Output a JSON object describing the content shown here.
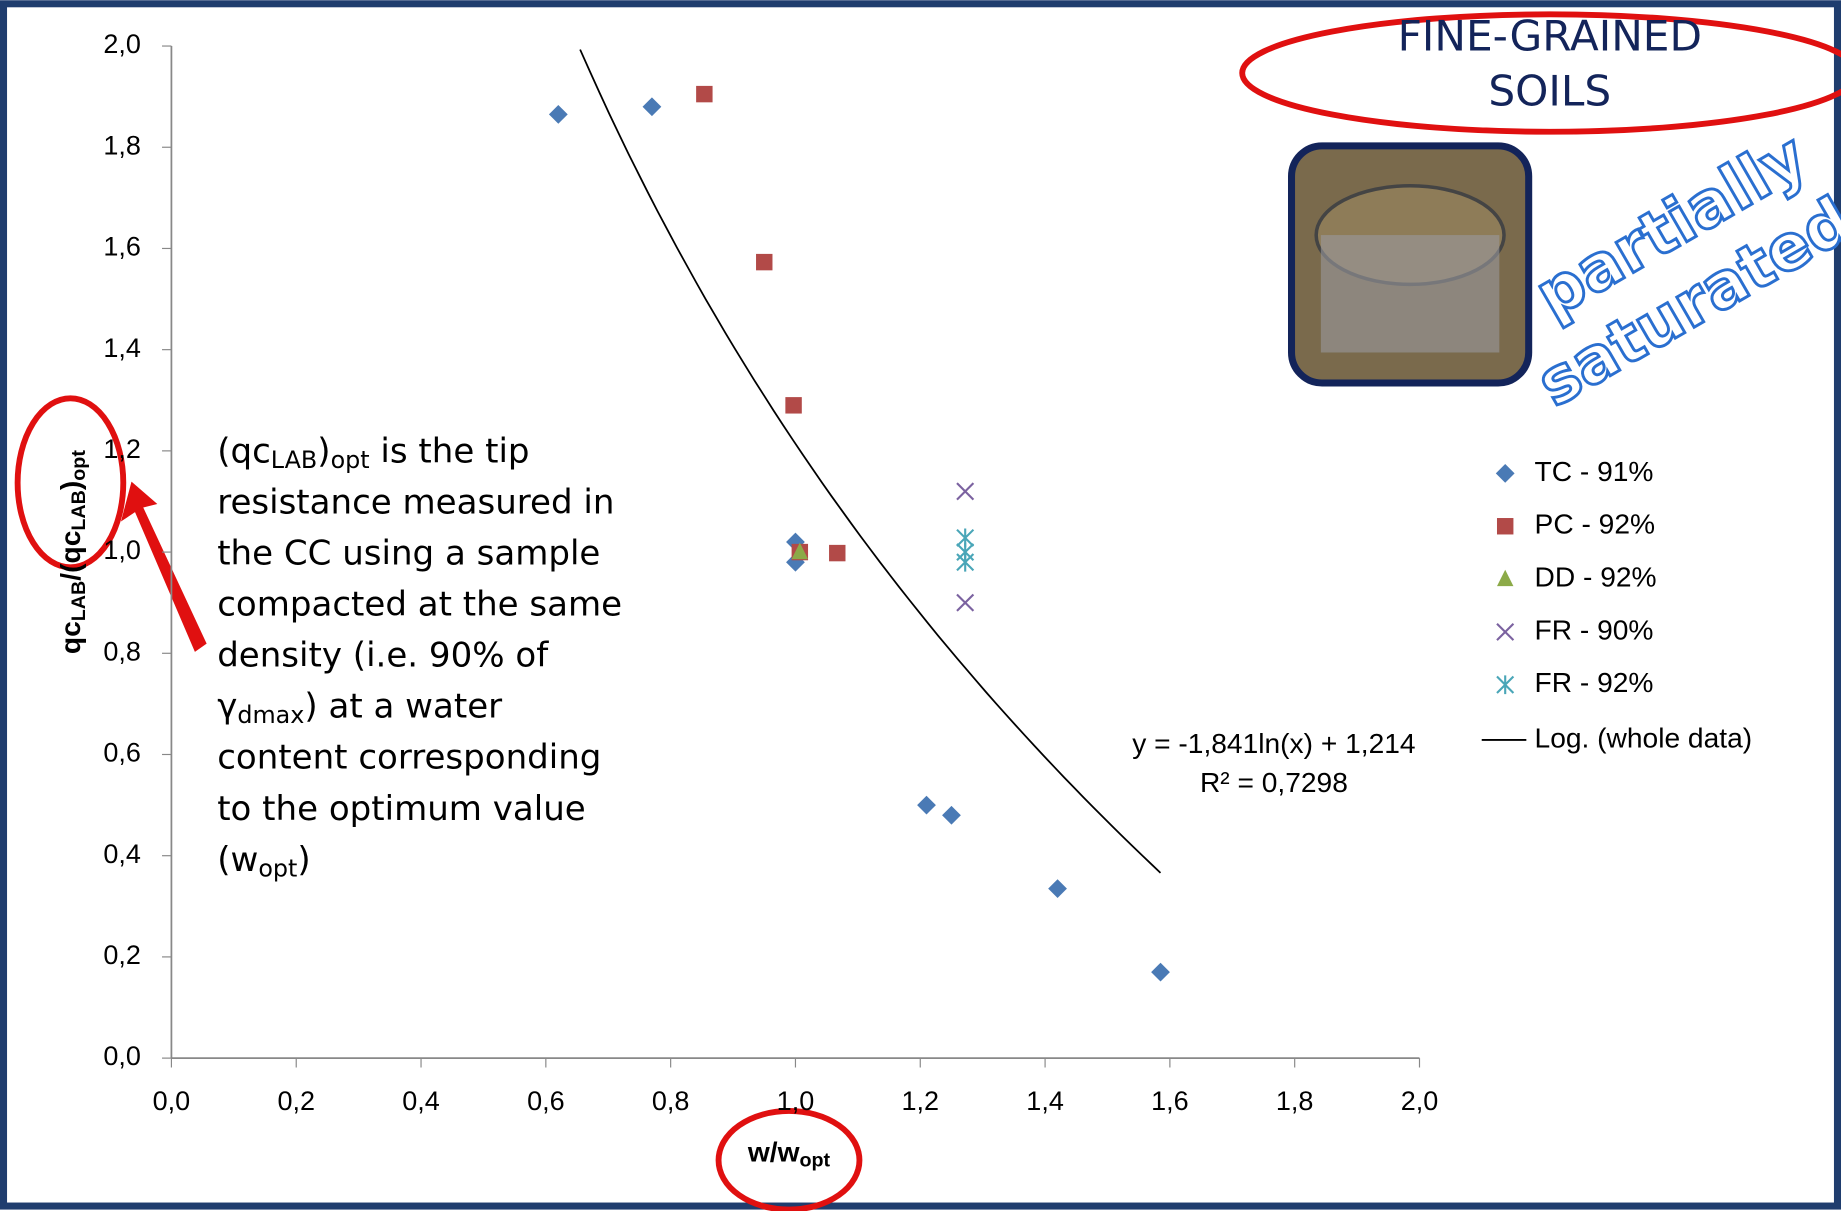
{
  "chart_data": {
    "type": "scatter",
    "xlabel": [
      {
        "t": "w/w"
      },
      {
        "t": "opt",
        "sub": true
      }
    ],
    "ylabel": [
      {
        "t": "qc"
      },
      {
        "t": "LAB",
        "sub": true
      },
      {
        "t": "/(qc"
      },
      {
        "t": "LAB",
        "sub": true
      },
      {
        "t": ")"
      },
      {
        "t": "opt",
        "sub": true
      }
    ],
    "xlim": [
      0,
      2
    ],
    "ylim": [
      0,
      2
    ],
    "xticks": [
      {
        "value": 0,
        "label": "0,0"
      },
      {
        "value": 0.2,
        "label": "0,2"
      },
      {
        "value": 0.4,
        "label": "0,4"
      },
      {
        "value": 0.6,
        "label": "0,6"
      },
      {
        "value": 0.8,
        "label": "0,8"
      },
      {
        "value": 1,
        "label": "1,0"
      },
      {
        "value": 1.2,
        "label": "1,2"
      },
      {
        "value": 1.4,
        "label": "1,4"
      },
      {
        "value": 1.6,
        "label": "1,6"
      },
      {
        "value": 1.8,
        "label": "1,8"
      },
      {
        "value": 2,
        "label": "2,0"
      }
    ],
    "yticks": [
      {
        "value": 0,
        "label": "0,0"
      },
      {
        "value": 0.2,
        "label": "0,2"
      },
      {
        "value": 0.4,
        "label": "0,4"
      },
      {
        "value": 0.6,
        "label": "0,6"
      },
      {
        "value": 0.8,
        "label": "0,8"
      },
      {
        "value": 1,
        "label": "1,0"
      },
      {
        "value": 1.2,
        "label": "1,2"
      },
      {
        "value": 1.4,
        "label": "1,4"
      },
      {
        "value": 1.6,
        "label": "1,6"
      },
      {
        "value": 1.8,
        "label": "1,8"
      },
      {
        "value": 2,
        "label": "2,0"
      }
    ],
    "series": [
      {
        "name": "TC - 91%",
        "color": "#4a7ab5",
        "marker": "diamond",
        "x": [
          0.62,
          0.77,
          1.0,
          1.0,
          1.21,
          1.25,
          1.42,
          1.585
        ],
        "values": [
          1.865,
          1.88,
          1.02,
          0.98,
          0.5,
          0.48,
          0.335,
          0.17
        ]
      },
      {
        "name": "PC - 92%",
        "color": "#b24a48",
        "marker": "square",
        "x": [
          0.854,
          0.95,
          0.997,
          1.007,
          1.067
        ],
        "values": [
          1.905,
          1.573,
          1.29,
          1.0,
          0.998
        ]
      },
      {
        "name": "DD - 92%",
        "color": "#8caa48",
        "marker": "triangle",
        "x": [
          1.007
        ],
        "values": [
          1.0
        ]
      },
      {
        "name": "FR - 90%",
        "color": "#7b62a0",
        "marker": "x",
        "x": [
          1.272,
          1.272
        ],
        "values": [
          1.12,
          0.9
        ]
      },
      {
        "name": "FR - 92%",
        "color": "#4aa6b8",
        "marker": "asterisk",
        "x": [
          1.272,
          1.272,
          1.272
        ],
        "values": [
          1.028,
          1.0,
          0.98
        ]
      }
    ],
    "trendline": {
      "name": "Log. (whole data)",
      "equation": "y = -1,841ln(x) + 1,214",
      "r2": "R² = 0,7298",
      "a": -1.841,
      "b": 1.214,
      "xrange": [
        0.655,
        1.585
      ]
    },
    "annotation": [
      [
        {
          "t": "(qc"
        },
        {
          "t": "LAB",
          "sub": true
        },
        {
          "t": ")"
        },
        {
          "t": "opt",
          "sub": true
        },
        {
          "t": " is the tip"
        }
      ],
      [
        {
          "t": "resistance measured in"
        }
      ],
      [
        {
          "t": "the CC using a sample"
        }
      ],
      [
        {
          "t": "compacted at the same"
        }
      ],
      [
        {
          "t": "density (i.e. 90% of"
        }
      ],
      [
        {
          "t": "γ"
        },
        {
          "t": "dmax",
          "sub": true
        },
        {
          "t": ") at a water"
        }
      ],
      [
        {
          "t": "content corresponding"
        }
      ],
      [
        {
          "t": "to the optimum value"
        }
      ],
      [
        {
          "t": "(w"
        },
        {
          "t": "opt",
          "sub": true
        },
        {
          "t": ")"
        }
      ]
    ],
    "badge": [
      "FINE-GRAINED",
      "SOILS"
    ],
    "stamp": [
      "partially",
      "saturated"
    ]
  }
}
